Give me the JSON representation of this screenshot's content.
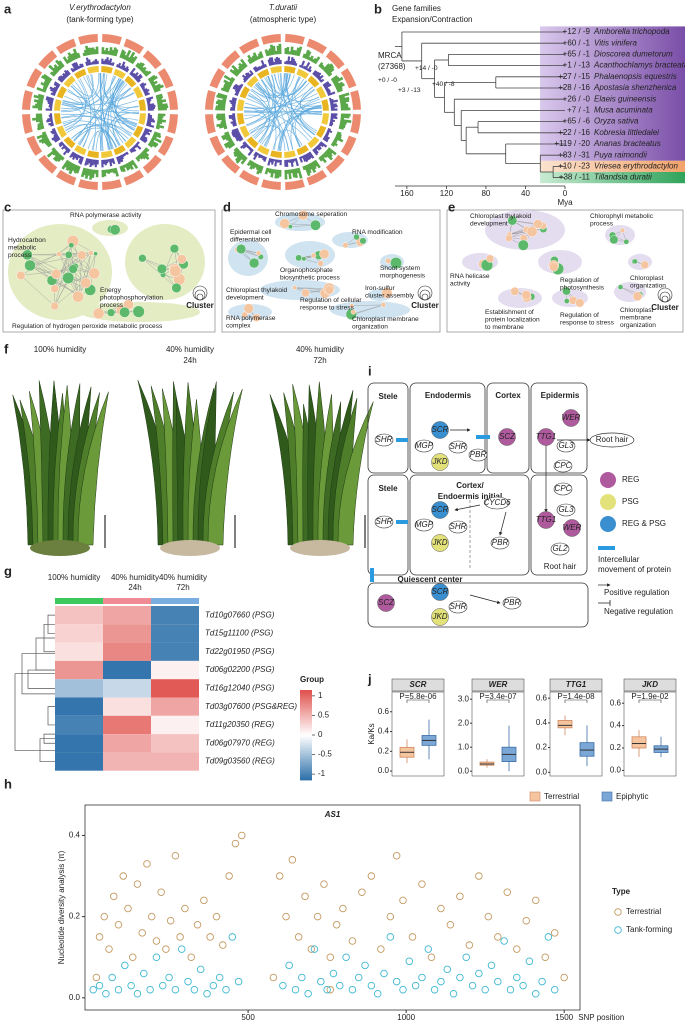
{
  "panels": {
    "a": {
      "letter": "a",
      "left": {
        "name": "V.erythrodactylon",
        "type": "(tank-forming type)"
      },
      "right": {
        "name": "T.duratii",
        "type": "(atmospheric type)"
      }
    },
    "b": {
      "letter": "b",
      "title": [
        "Gene families",
        "Expansion/Contraction"
      ],
      "root": [
        "MRCA",
        "(27368)"
      ],
      "species": [
        {
          "name": "Amborella trichopoda",
          "change": "+12 / -9"
        },
        {
          "name": "Vitis vinifera",
          "change": "+60 / -1"
        },
        {
          "name": "Dioscorea dumetorum",
          "change": "+65 / -1"
        },
        {
          "name": "Acanthochlamys bracteata",
          "change": "+1 / -13"
        },
        {
          "name": "Phalaenopsis equestris",
          "change": "+27 / -15"
        },
        {
          "name": "Apostasia shenzhenica",
          "change": "+28 / -16"
        },
        {
          "name": "Elaeis guineensis",
          "change": "+26 / -0"
        },
        {
          "name": "Musa acuminata",
          "change": "+7 / -1"
        },
        {
          "name": "Oryza sativa",
          "change": "+65 / -6"
        },
        {
          "name": "Kobresia littledalei",
          "change": "+22 / -16"
        },
        {
          "name": "Ananas bracteatus",
          "change": "+119 / -20"
        },
        {
          "name": "Puya raimondii",
          "change": "+83 / -31"
        },
        {
          "name": "Vriesea erythrodactylon",
          "change": "+10 / -23"
        },
        {
          "name": "Tillandsia duratii",
          "change": "+38 / -11"
        }
      ],
      "branch_labels": [
        "+0 / -0",
        "+14 / -0",
        "+3 / -13",
        "+40 / -8"
      ],
      "xlim": [
        172,
        0
      ],
      "xticks": [
        160,
        120,
        80,
        40,
        0
      ],
      "xlabel": "Mya"
    },
    "c": {
      "letter": "c",
      "legend": "Cluster",
      "terms": [
        [
          "RNA polymerase activity"
        ],
        [
          "Hydrocarbon",
          "metabolic",
          "process"
        ],
        [
          "Energy",
          "photophosphorylation",
          "process"
        ],
        [
          "Regulation of hydrogen peroxide metabolic process"
        ]
      ]
    },
    "d": {
      "letter": "d",
      "legend": "Cluster",
      "terms": [
        [
          "Chromosome seperation"
        ],
        [
          "Epidermal cell",
          "differentiation"
        ],
        [
          "RNA modification"
        ],
        [
          "Organophosphate",
          "biosynthetic process"
        ],
        [
          "Shoot system",
          "morphogenesis"
        ],
        [
          "Chloroplast thylakoid",
          "development"
        ],
        [
          "Iron-sulfur",
          "cluster assembly"
        ],
        [
          "Regulation of cellular",
          "response to stress"
        ],
        [
          "RNA polymerase",
          "complex"
        ],
        [
          "Chloroplast membrane",
          "organization"
        ]
      ]
    },
    "e": {
      "letter": "e",
      "legend": "Cluster",
      "terms": [
        [
          "Chloroplast thylakoid",
          "development"
        ],
        [
          "Chlorophyll metabolic",
          "process"
        ],
        [
          "RNA helicase",
          "activity"
        ],
        [
          "Regulation of",
          "photosynthesis"
        ],
        [
          "Chloroplast",
          "organization"
        ],
        [
          "Establishment of",
          "protein localization",
          "to membrane"
        ],
        [
          "Regulation of",
          "response to stress"
        ],
        [
          "Chloroplast",
          "membrane",
          "organization"
        ]
      ]
    },
    "f": {
      "letter": "f",
      "conditions": [
        [
          "100% humidity"
        ],
        [
          "40% humidity",
          "24h"
        ],
        [
          "40% humidity",
          "72h"
        ]
      ]
    },
    "i": {
      "letter": "i",
      "regions": [
        "Stele",
        "Endodermis",
        "Cortex",
        "Epidermis",
        "Root hair",
        "Stele",
        "Cortex/",
        "Endoermis initial",
        "Root hair",
        "Quiescent center"
      ],
      "nodes": [
        {
          "label": "SHR"
        },
        {
          "label": "SCR",
          "color": "#3a8fd0"
        },
        {
          "label": "MGP"
        },
        {
          "label": "SHR"
        },
        {
          "label": "JKD",
          "color": "#e3e27a"
        },
        {
          "label": "PBR"
        },
        {
          "label": "SCZ",
          "color": "#b05a9e"
        },
        {
          "label": "WER",
          "color": "#b05a9e"
        },
        {
          "label": "TTG1",
          "color": "#b05a9e"
        },
        {
          "label": "GL3"
        },
        {
          "label": "CPC"
        },
        {
          "label": "SHR"
        },
        {
          "label": "SCR",
          "color": "#3a8fd0"
        },
        {
          "label": "MGP"
        },
        {
          "label": "SHR"
        },
        {
          "label": "JKD",
          "color": "#e3e27a"
        },
        {
          "label": "CYCD6"
        },
        {
          "label": "PBR"
        },
        {
          "label": "CPC"
        },
        {
          "label": "GL3"
        },
        {
          "label": "TTG1",
          "color": "#b05a9e"
        },
        {
          "label": "WER",
          "color": "#b05a9e"
        },
        {
          "label": "GL2"
        },
        {
          "label": "SCZ",
          "color": "#b05a9e"
        },
        {
          "label": "SCR",
          "color": "#3a8fd0"
        },
        {
          "label": "SHR"
        },
        {
          "label": "JKD",
          "color": "#e3e27a"
        },
        {
          "label": "PBR"
        }
      ],
      "legend": {
        "kinds": [
          {
            "label": "REG",
            "color": "#b05a9e"
          },
          {
            "label": "PSG",
            "color": "#e3e27a"
          },
          {
            "label": "REG & PSG",
            "color": "#3a8fd0"
          }
        ],
        "movement": [
          "Intercellular",
          "movement of protein"
        ],
        "positive": "Positive regulation",
        "negative": "Negative regulation"
      }
    }
  },
  "chart_data": [
    {
      "type": "heatmap",
      "letter": "g",
      "columns": [
        [
          "100% humidity"
        ],
        [
          "40% humidity",
          "24h"
        ],
        [
          "40% humidity",
          "72h"
        ]
      ],
      "column_colors": [
        "#3cc85a",
        "#f08a94",
        "#7aaee0"
      ],
      "rows": [
        "Td10g07660 (PSG)",
        "Td15g11100 (PSG)",
        "Td22g01950 (PSG)",
        "Td06g02200 (PSG)",
        "Td16g12040 (PSG)",
        "Td03g07600 (PSG&REG)",
        "Td11g20350 (REG)",
        "Td06g07970 (REG)",
        "Td09g03560 (REG)"
      ],
      "values": [
        [
          0.4,
          0.6,
          -1.0
        ],
        [
          0.3,
          0.7,
          -1.0
        ],
        [
          0.2,
          0.8,
          -1.0
        ],
        [
          0.7,
          -1.1,
          0.1
        ],
        [
          -0.5,
          -0.3,
          1.1
        ],
        [
          -1.1,
          0.2,
          0.6
        ],
        [
          -1.0,
          0.9,
          0.1
        ],
        [
          -1.1,
          0.6,
          0.4
        ],
        [
          -1.1,
          0.5,
          0.5
        ]
      ],
      "zlim": [
        -1.15,
        1.15
      ],
      "colors": [
        "#2a6fa8",
        "#ffffff",
        "#e0524e"
      ],
      "colorbar": {
        "title": "Group",
        "ticks": [
          1,
          0.5,
          0,
          -0.5,
          -1
        ]
      }
    },
    {
      "type": "scatter",
      "letter": "h",
      "title": "AS1",
      "xlabel": "SNP position",
      "ylabel": "Nucleotide diversity analysis (π)",
      "xlim": [
        -16,
        1550
      ],
      "ylim": [
        -0.03,
        0.475
      ],
      "xticks": [
        500,
        1000,
        1500
      ],
      "yticks": [
        {
          "value": 0,
          "label": "0.0"
        },
        0.2,
        0.4
      ],
      "legend_title": "Type",
      "series": [
        {
          "name": "Terrestrial",
          "color": "#c49a62",
          "x": [
            20,
            30,
            45,
            60,
            75,
            90,
            105,
            120,
            135,
            150,
            165,
            180,
            195,
            210,
            225,
            240,
            255,
            270,
            285,
            300,
            320,
            340,
            360,
            380,
            400,
            420,
            440,
            460,
            480,
            580,
            600,
            620,
            640,
            660,
            680,
            700,
            720,
            740,
            760,
            760,
            780,
            800,
            830,
            860,
            890,
            920,
            950,
            970,
            990,
            1020,
            1050,
            1080,
            1110,
            1140,
            1170,
            1200,
            1230,
            1260,
            1290,
            1320,
            1350,
            1380,
            1410,
            1440,
            1470,
            1500
          ],
          "values": [
            0.05,
            0.15,
            0.2,
            0.12,
            0.25,
            0.18,
            0.3,
            0.22,
            0.1,
            0.28,
            0.16,
            0.33,
            0.2,
            0.14,
            0.26,
            0.12,
            0.19,
            0.35,
            0.15,
            0.22,
            0.1,
            0.18,
            0.24,
            0.15,
            0.2,
            0.13,
            0.3,
            0.38,
            0.4,
            0.05,
            0.3,
            0.2,
            0.34,
            0.15,
            0.25,
            0.12,
            0.2,
            0.28,
            0.1,
            0.02,
            0.18,
            0.22,
            0.14,
            0.26,
            0.3,
            0.12,
            0.2,
            0.35,
            0.24,
            0.15,
            0.28,
            0.1,
            0.22,
            0.18,
            0.25,
            0.13,
            0.3,
            0.2,
            0.15,
            0.26,
            0.12,
            0.19,
            0.24,
            0.1,
            0.16,
            0.05
          ]
        },
        {
          "name": "Tank-forming",
          "color": "#3fb8d0",
          "x": [
            10,
            30,
            50,
            70,
            90,
            110,
            130,
            150,
            170,
            190,
            210,
            230,
            250,
            270,
            290,
            310,
            330,
            350,
            370,
            390,
            410,
            430,
            450,
            470,
            610,
            630,
            650,
            670,
            690,
            710,
            730,
            750,
            770,
            790,
            810,
            830,
            850,
            870,
            890,
            910,
            930,
            950,
            970,
            990,
            1010,
            1030,
            1050,
            1070,
            1090,
            1110,
            1130,
            1150,
            1170,
            1190,
            1210,
            1230,
            1250,
            1270,
            1290,
            1310,
            1330,
            1350,
            1370,
            1390,
            1410,
            1430,
            1450,
            1470
          ],
          "values": [
            0.02,
            0.03,
            0.01,
            0.05,
            0.02,
            0.08,
            0.03,
            0.01,
            0.06,
            0.02,
            0.1,
            0.03,
            0.05,
            0.02,
            0.12,
            0.04,
            0.02,
            0.07,
            0.01,
            0.03,
            0.05,
            0.02,
            0.15,
            0.04,
            0.03,
            0.08,
            0.02,
            0.05,
            0.01,
            0.12,
            0.04,
            0.02,
            0.06,
            0.03,
            0.1,
            0.02,
            0.05,
            0.08,
            0.03,
            0.01,
            0.06,
            0.15,
            0.04,
            0.02,
            0.09,
            0.03,
            0.05,
            0.12,
            0.02,
            0.04,
            0.07,
            0.01,
            0.05,
            0.1,
            0.03,
            0.06,
            0.02,
            0.08,
            0.04,
            0.14,
            0.02,
            0.05,
            0.03,
            0.09,
            0.01,
            0.04,
            0.15,
            0.02
          ]
        }
      ]
    },
    {
      "type": "box",
      "letter": "j",
      "title": "SCR",
      "p_label": "P=5.8e-06",
      "ylabel": "Ka/Ks",
      "ylim": [
        -0.05,
        0.8
      ],
      "yticks": [
        {
          "value": 0,
          "label": "0.0"
        },
        0.2,
        0.4,
        0.6
      ],
      "series": [
        {
          "name": "Terrestrial",
          "color": "#f5c5a0",
          "values": [
            0.08,
            0.14,
            0.19,
            0.24,
            0.32
          ]
        },
        {
          "name": "Epiphytic",
          "color": "#7aa7d6",
          "values": [
            0.12,
            0.26,
            0.31,
            0.36,
            0.52
          ]
        }
      ]
    },
    {
      "type": "box",
      "title": "WER",
      "p_label": "P=3.4e-07",
      "ylim": [
        -0.2,
        3.3
      ],
      "yticks": [
        {
          "value": 0,
          "label": "0.0"
        },
        {
          "value": 1,
          "label": "1.0"
        },
        {
          "value": 2,
          "label": "2.0"
        },
        {
          "value": 3,
          "label": "3.0"
        }
      ],
      "series": [
        {
          "color": "#f5c5a0",
          "values": [
            0.15,
            0.25,
            0.3,
            0.38,
            0.5
          ]
        },
        {
          "color": "#7aa7d6",
          "values": [
            0,
            0.4,
            0.7,
            1.0,
            1.9
          ]
        }
      ]
    },
    {
      "type": "box",
      "title": "TTG1",
      "p_label": "P=1.4e-08",
      "ylim": [
        -0.03,
        0.65
      ],
      "yticks": [
        {
          "value": 0,
          "label": "0.0"
        },
        0.2,
        0.4,
        0.6
      ],
      "series": [
        {
          "color": "#f5c5a0",
          "values": [
            0.3,
            0.36,
            0.38,
            0.42,
            0.46
          ]
        },
        {
          "color": "#7aa7d6",
          "values": [
            0.05,
            0.13,
            0.18,
            0.24,
            0.38
          ]
        }
      ]
    },
    {
      "type": "box",
      "title": "JKD",
      "p_label": "P=1.9e-02",
      "ylim": [
        -0.05,
        0.7
      ],
      "yticks": [
        {
          "value": 0,
          "label": "0.0"
        },
        0.2,
        0.4,
        0.6
      ],
      "series": [
        {
          "color": "#f5c5a0",
          "values": [
            0.12,
            0.2,
            0.24,
            0.3,
            0.36
          ]
        },
        {
          "color": "#7aa7d6",
          "values": [
            0.12,
            0.16,
            0.19,
            0.22,
            0.3
          ]
        }
      ]
    }
  ]
}
